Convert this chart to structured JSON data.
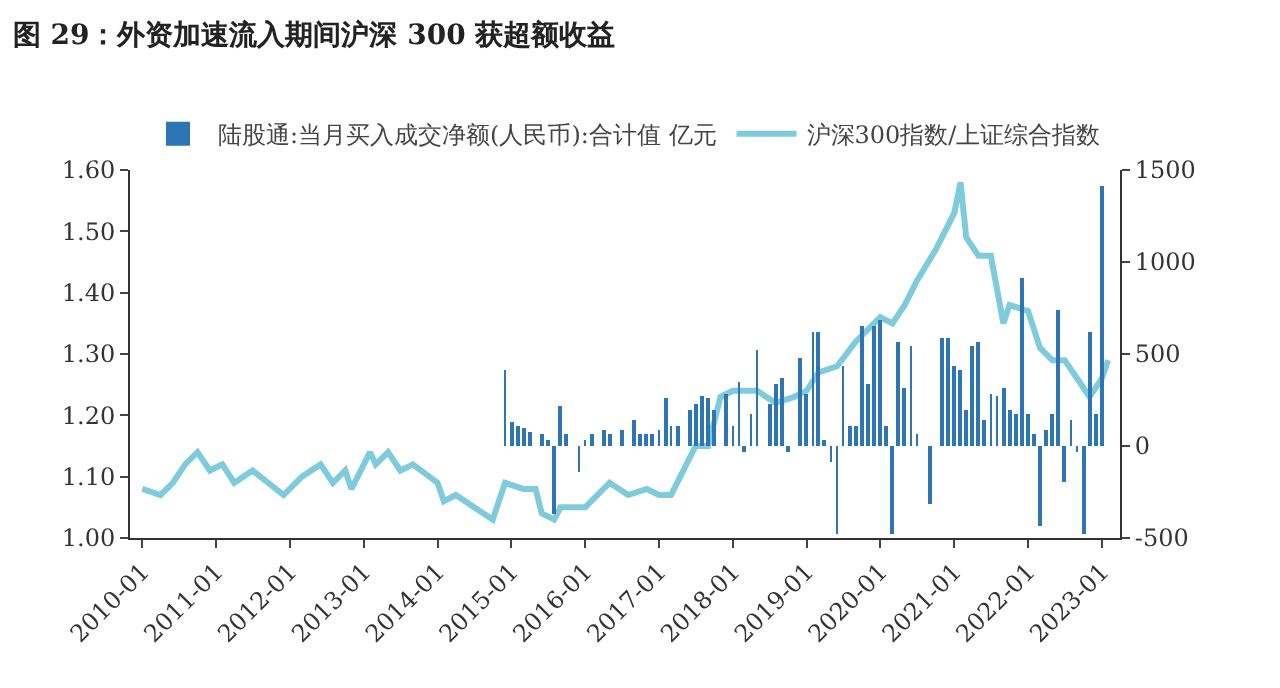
{
  "chart_data": {
    "type": "line",
    "title": "图 29：外资加速流入期间沪深 300 获超额收益",
    "legend": "top",
    "grid": false,
    "marker": "none",
    "line_style": "solid",
    "xlim": [
      "2009-11",
      "2023-04"
    ],
    "xticks": [
      {
        "value": "2010-01",
        "label": "2010-01"
      },
      {
        "value": "2011-01",
        "label": "2011-01"
      },
      {
        "value": "2012-01",
        "label": "2012-01"
      },
      {
        "value": "2013-01",
        "label": "2013-01"
      },
      {
        "value": "2014-01",
        "label": "2014-01"
      },
      {
        "value": "2015-01",
        "label": "2015-01"
      },
      {
        "value": "2016-01",
        "label": "2016-01"
      },
      {
        "value": "2017-01",
        "label": "2017-01"
      },
      {
        "value": "2018-01",
        "label": "2018-01"
      },
      {
        "value": "2019-01",
        "label": "2019-01"
      },
      {
        "value": "2020-01",
        "label": "2020-01"
      },
      {
        "value": "2021-01",
        "label": "2021-01"
      },
      {
        "value": "2022-01",
        "label": "2022-01"
      },
      {
        "value": "2023-01",
        "label": "2023-01"
      }
    ],
    "ylim": [
      1.0,
      1.6
    ],
    "yticks": [
      {
        "value": 1.0,
        "label": "1.00"
      },
      {
        "value": 1.1,
        "label": "1.10"
      },
      {
        "value": 1.2,
        "label": "1.20"
      },
      {
        "value": 1.3,
        "label": "1.30"
      },
      {
        "value": 1.4,
        "label": "1.40"
      },
      {
        "value": 1.5,
        "label": "1.50"
      },
      {
        "value": 1.6,
        "label": "1.60"
      }
    ],
    "y2lim": [
      -500,
      1500
    ],
    "y2ticks": [
      -500,
      0,
      500,
      1000,
      1500
    ],
    "series": [
      {
        "name": "陆股通:当月买入成交净额(人民币):合计值 亿元",
        "type": "bar",
        "axis": "y2",
        "color": "#2e75b6",
        "x": [
          "2014-12",
          "2015-01",
          "2015-02",
          "2015-03",
          "2015-04",
          "2015-06",
          "2015-07",
          "2015-08",
          "2015-09",
          "2015-10",
          "2015-12",
          "2016-01",
          "2016-02",
          "2016-04",
          "2016-05",
          "2016-07",
          "2016-09",
          "2016-10",
          "2016-11",
          "2016-12",
          "2017-01",
          "2017-02",
          "2017-03",
          "2017-04",
          "2017-06",
          "2017-07",
          "2017-08",
          "2017-09",
          "2017-10",
          "2017-12",
          "2018-01",
          "2018-02",
          "2018-03",
          "2018-04",
          "2018-05",
          "2018-07",
          "2018-08",
          "2018-09",
          "2018-10",
          "2018-12",
          "2019-01",
          "2019-02",
          "2019-03",
          "2019-04",
          "2019-05",
          "2019-06",
          "2019-07",
          "2019-08",
          "2019-09",
          "2019-10",
          "2019-11",
          "2019-12",
          "2020-01",
          "2020-02",
          "2020-03",
          "2020-04",
          "2020-05",
          "2020-06",
          "2020-07",
          "2020-09",
          "2020-11",
          "2020-12",
          "2021-01",
          "2021-02",
          "2021-03",
          "2021-04",
          "2021-05",
          "2021-06",
          "2021-07",
          "2021-08",
          "2021-09",
          "2021-10",
          "2021-11",
          "2021-12",
          "2022-01",
          "2022-02",
          "2022-03",
          "2022-04",
          "2022-05",
          "2022-06",
          "2022-07",
          "2022-08",
          "2022-09",
          "2022-10",
          "2022-11",
          "2022-12",
          "2023-01"
        ],
        "values": [
          410,
          130,
          110,
          100,
          80,
          60,
          30,
          -370,
          220,
          60,
          -140,
          30,
          60,
          90,
          60,
          90,
          140,
          70,
          60,
          60,
          90,
          260,
          110,
          110,
          200,
          230,
          270,
          260,
          200,
          280,
          110,
          350,
          -30,
          170,
          520,
          230,
          340,
          370,
          -30,
          480,
          280,
          620,
          620,
          30,
          -90,
          -480,
          430,
          110,
          110,
          650,
          340,
          650,
          680,
          110,
          -480,
          560,
          310,
          540,
          60,
          -310,
          590,
          590,
          430,
          410,
          200,
          540,
          560,
          140,
          280,
          270,
          310,
          200,
          170,
          910,
          170,
          60,
          -440,
          90,
          170,
          740,
          -200,
          140,
          -30,
          -480,
          620,
          170,
          1410
        ]
      },
      {
        "name": "沪深300指数/上证综合指数",
        "color": "#7ecbdb",
        "x": [
          "2010-01",
          "2010-04",
          "2010-06",
          "2010-08",
          "2010-10",
          "2010-12",
          "2011-02",
          "2011-04",
          "2011-07",
          "2011-12",
          "2012-03",
          "2012-06",
          "2012-08",
          "2012-10",
          "2012-11",
          "2013-02",
          "2013-03",
          "2013-05",
          "2013-07",
          "2013-09",
          "2014-01",
          "2014-02",
          "2014-04",
          "2014-07",
          "2014-10",
          "2014-12",
          "2015-03",
          "2015-05",
          "2015-06",
          "2015-08",
          "2015-09",
          "2016-01",
          "2016-03",
          "2016-05",
          "2016-08",
          "2016-11",
          "2017-01",
          "2017-03",
          "2017-05",
          "2017-07",
          "2017-09",
          "2017-11",
          "2018-01",
          "2018-05",
          "2018-08",
          "2018-11",
          "2019-01",
          "2019-03",
          "2019-06",
          "2019-09",
          "2020-01",
          "2020-03",
          "2020-05",
          "2020-07",
          "2020-10",
          "2021-01",
          "2021-02",
          "2021-03",
          "2021-05",
          "2021-07",
          "2021-09",
          "2021-10",
          "2022-01",
          "2022-03",
          "2022-05",
          "2022-07",
          "2022-09",
          "2022-11",
          "2023-01",
          "2023-02"
        ],
        "values": [
          1.08,
          1.07,
          1.09,
          1.12,
          1.14,
          1.11,
          1.12,
          1.09,
          1.11,
          1.07,
          1.1,
          1.12,
          1.09,
          1.11,
          1.08,
          1.14,
          1.12,
          1.14,
          1.11,
          1.12,
          1.09,
          1.06,
          1.07,
          1.05,
          1.03,
          1.09,
          1.08,
          1.08,
          1.04,
          1.03,
          1.05,
          1.05,
          1.07,
          1.09,
          1.07,
          1.08,
          1.07,
          1.07,
          1.11,
          1.15,
          1.15,
          1.23,
          1.24,
          1.24,
          1.22,
          1.23,
          1.24,
          1.27,
          1.28,
          1.32,
          1.36,
          1.35,
          1.38,
          1.42,
          1.47,
          1.53,
          1.58,
          1.49,
          1.46,
          1.46,
          1.35,
          1.38,
          1.37,
          1.31,
          1.29,
          1.29,
          1.26,
          1.23,
          1.26,
          1.29
        ]
      }
    ]
  }
}
